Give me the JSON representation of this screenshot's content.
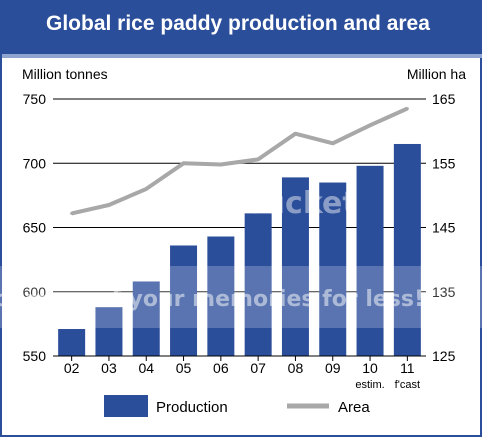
{
  "title": "Global rice paddy production and area",
  "colors": {
    "header_bg": "#2b4e9a",
    "production_bar": "#2b4e9a",
    "area_line": "#a8a8a8"
  },
  "watermark": {
    "brand": "Photobucket",
    "tagline": "Protect more of your memories for less!"
  },
  "chart_data": {
    "type": "bar",
    "categories": [
      "02",
      "03",
      "04",
      "05",
      "06",
      "07",
      "08",
      "09",
      "10",
      "11"
    ],
    "category_sublabels": [
      "",
      "",
      "",
      "",
      "",
      "",
      "",
      "",
      "estim.",
      "f'cast"
    ],
    "series": [
      {
        "name": "Production",
        "type": "bar",
        "axis": "left",
        "values": [
          571,
          588,
          608,
          636,
          643,
          661,
          689,
          685,
          698,
          715
        ]
      },
      {
        "name": "Area",
        "type": "line",
        "axis": "right",
        "values": [
          147.2,
          148.5,
          151,
          155,
          154.8,
          155.6,
          159.6,
          158.1,
          160.9,
          163.5
        ]
      }
    ],
    "ylabel_left": "Million tonnes",
    "ylabel_right": "Million ha",
    "ylim_left": [
      550,
      750
    ],
    "ylim_right": [
      125,
      165
    ],
    "yticks_left": [
      550,
      600,
      650,
      700,
      750
    ],
    "yticks_right": [
      125,
      135,
      145,
      155,
      165
    ],
    "grid": true,
    "legend": {
      "position": "bottom",
      "items": [
        "Production",
        "Area"
      ]
    }
  }
}
